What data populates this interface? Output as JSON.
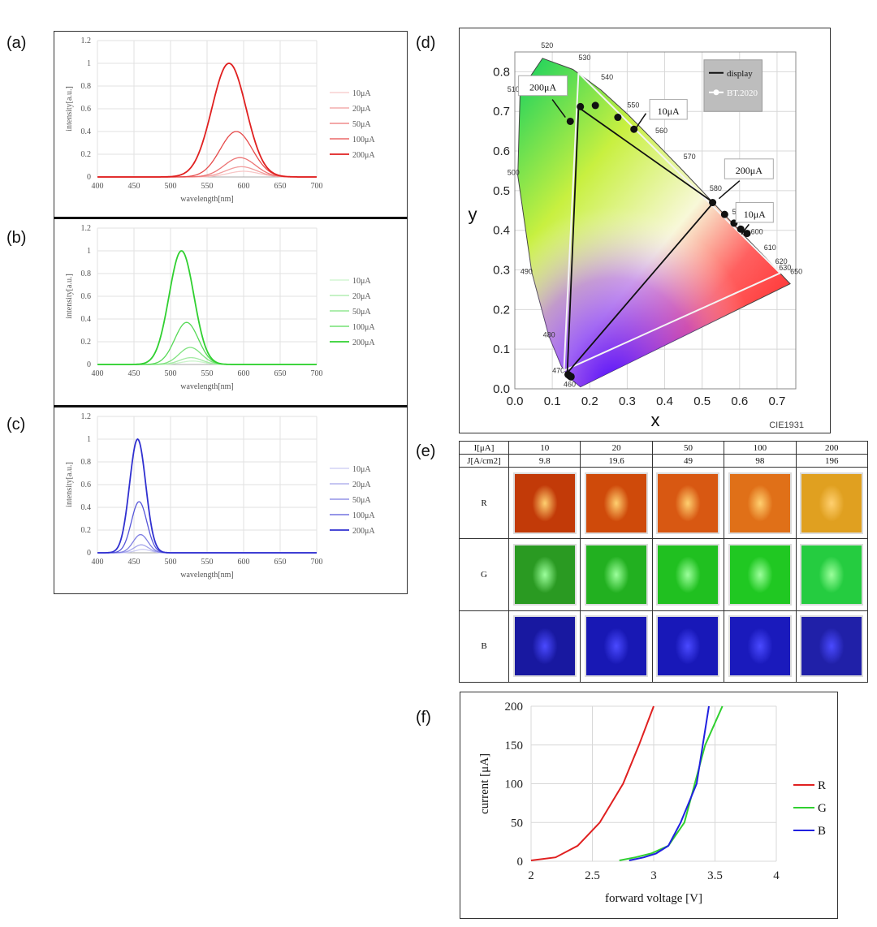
{
  "panels": {
    "a": "(a)",
    "b": "(b)",
    "c": "(c)",
    "d": "(d)",
    "e": "(e)",
    "f": "(f)"
  },
  "spectra": {
    "xlabel": "wavelength[nm]",
    "ylabel": "intensity[a.u.]",
    "xticks": [
      "400",
      "450",
      "500",
      "550",
      "600",
      "650",
      "700"
    ],
    "yticks": [
      "0",
      "0.2",
      "0.4",
      "0.6",
      "0.8",
      "1",
      "1.2"
    ],
    "xlim": [
      400,
      700
    ],
    "ylim": [
      0,
      1.2
    ],
    "legend": [
      "10μA",
      "20μA",
      "50μA",
      "100μA",
      "200μA"
    ]
  },
  "chart_data": [
    {
      "type": "line",
      "id": "a",
      "xlabel": "wavelength[nm]",
      "ylabel": "intensity[a.u.]",
      "xlim": [
        400,
        700
      ],
      "ylim": [
        0,
        1.2
      ],
      "grid": true,
      "legend_position": "right",
      "series_color": "#e02020",
      "series": [
        {
          "name": "10μA",
          "peak_nm": 600,
          "fwhm_nm": 50,
          "peak": 0.05
        },
        {
          "name": "20μA",
          "peak_nm": 597,
          "fwhm_nm": 50,
          "peak": 0.09
        },
        {
          "name": "50μA",
          "peak_nm": 595,
          "fwhm_nm": 50,
          "peak": 0.17
        },
        {
          "name": "100μA",
          "peak_nm": 590,
          "fwhm_nm": 52,
          "peak": 0.4
        },
        {
          "name": "200μA",
          "peak_nm": 580,
          "fwhm_nm": 55,
          "peak": 1.0
        }
      ]
    },
    {
      "type": "line",
      "id": "b",
      "xlabel": "wavelength[nm]",
      "ylabel": "intensity[a.u.]",
      "xlim": [
        400,
        700
      ],
      "ylim": [
        0,
        1.2
      ],
      "grid": true,
      "legend_position": "right",
      "series_color": "#30d030",
      "series": [
        {
          "name": "10μA",
          "peak_nm": 530,
          "fwhm_nm": 36,
          "peak": 0.03
        },
        {
          "name": "20μA",
          "peak_nm": 528,
          "fwhm_nm": 36,
          "peak": 0.06
        },
        {
          "name": "50μA",
          "peak_nm": 527,
          "fwhm_nm": 36,
          "peak": 0.15
        },
        {
          "name": "100μA",
          "peak_nm": 522,
          "fwhm_nm": 38,
          "peak": 0.37
        },
        {
          "name": "200μA",
          "peak_nm": 515,
          "fwhm_nm": 40,
          "peak": 1.0
        }
      ]
    },
    {
      "type": "line",
      "id": "c",
      "xlabel": "wavelength[nm]",
      "ylabel": "intensity[a.u.]",
      "xlim": [
        400,
        700
      ],
      "ylim": [
        0,
        1.2
      ],
      "grid": true,
      "legend_position": "right",
      "series_color": "#3030d0",
      "series": [
        {
          "name": "10μA",
          "peak_nm": 462,
          "fwhm_nm": 24,
          "peak": 0.03
        },
        {
          "name": "20μA",
          "peak_nm": 460,
          "fwhm_nm": 24,
          "peak": 0.07
        },
        {
          "name": "50μA",
          "peak_nm": 459,
          "fwhm_nm": 24,
          "peak": 0.16
        },
        {
          "name": "100μA",
          "peak_nm": 457,
          "fwhm_nm": 25,
          "peak": 0.45
        },
        {
          "name": "200μA",
          "peak_nm": 455,
          "fwhm_nm": 26,
          "peak": 1.0
        }
      ]
    },
    {
      "type": "scatter",
      "id": "d",
      "xlabel": "x",
      "ylabel": "y",
      "xlim": [
        0,
        0.75
      ],
      "ylim": [
        0,
        0.85
      ],
      "grid": true,
      "legend_position": "top-right",
      "xticks": [
        "0.0",
        "0.1",
        "0.2",
        "0.3",
        "0.4",
        "0.5",
        "0.6",
        "0.7"
      ],
      "yticks": [
        "0.0",
        "0.1",
        "0.2",
        "0.3",
        "0.4",
        "0.5",
        "0.6",
        "0.7",
        "0.8"
      ],
      "legend": [
        "display",
        "BT.2020"
      ],
      "caption": "CIE1931",
      "annotations": [
        "200μA",
        "10μA",
        "200μA",
        "10μA"
      ],
      "locus_labels": [
        "460",
        "470",
        "480",
        "490",
        "500",
        "510",
        "520",
        "530",
        "540",
        "550",
        "560",
        "570",
        "580",
        "590",
        "600",
        "610",
        "620",
        "630",
        "650"
      ],
      "display_triangle": [
        [
          0.17,
          0.71
        ],
        [
          0.53,
          0.47
        ],
        [
          0.14,
          0.04
        ]
      ],
      "bt2020_triangle": [
        [
          0.17,
          0.797
        ],
        [
          0.708,
          0.292
        ],
        [
          0.131,
          0.046
        ]
      ],
      "green_points": [
        [
          0.148,
          0.675
        ],
        [
          0.175,
          0.712
        ],
        [
          0.215,
          0.715
        ],
        [
          0.275,
          0.685
        ],
        [
          0.318,
          0.655
        ]
      ],
      "red_points": [
        [
          0.528,
          0.47
        ],
        [
          0.56,
          0.44
        ],
        [
          0.585,
          0.418
        ],
        [
          0.603,
          0.403
        ],
        [
          0.62,
          0.392
        ]
      ],
      "blue_points": [
        [
          0.142,
          0.036
        ],
        [
          0.145,
          0.034
        ],
        [
          0.147,
          0.032
        ],
        [
          0.15,
          0.031
        ],
        [
          0.15,
          0.03
        ]
      ]
    },
    {
      "type": "line",
      "id": "f",
      "xlabel": "forward voltage [V]",
      "ylabel": "current [μA]",
      "xlim": [
        2,
        4
      ],
      "ylim": [
        0,
        200
      ],
      "grid": true,
      "legend_position": "right",
      "xticks": [
        "2",
        "2.5",
        "3",
        "3.5",
        "4"
      ],
      "yticks": [
        "0",
        "50",
        "100",
        "150",
        "200"
      ],
      "series": [
        {
          "name": "R",
          "color": "#e02020",
          "x": [
            2.0,
            2.2,
            2.38,
            2.56,
            2.75,
            2.88,
            3.0
          ],
          "y": [
            1,
            5,
            20,
            50,
            100,
            150,
            200
          ]
        },
        {
          "name": "G",
          "color": "#30d030",
          "x": [
            2.72,
            2.85,
            2.98,
            3.12,
            3.25,
            3.42,
            3.56
          ],
          "y": [
            1,
            5,
            10,
            20,
            50,
            150,
            200
          ]
        },
        {
          "name": "B",
          "color": "#2020e0",
          "x": [
            2.8,
            2.92,
            3.02,
            3.12,
            3.22,
            3.35,
            3.45
          ],
          "y": [
            1,
            5,
            10,
            20,
            50,
            100,
            200
          ]
        }
      ]
    }
  ],
  "table": {
    "row_I_label": "I[μA]",
    "row_J_label": "J[A/cm2]",
    "I": [
      "10",
      "20",
      "50",
      "100",
      "200"
    ],
    "J": [
      "9.8",
      "19.6",
      "49",
      "98",
      "196"
    ],
    "rows": [
      {
        "label": "R",
        "colors": [
          "#c23a08",
          "#cf4a0a",
          "#d85812",
          "#e07018",
          "#e0a020"
        ]
      },
      {
        "label": "G",
        "colors": [
          "#2a9a22",
          "#22b020",
          "#20c020",
          "#20c822",
          "#25cc40"
        ]
      },
      {
        "label": "B",
        "colors": [
          "#1818a0",
          "#1818b4",
          "#1818b8",
          "#1a1abc",
          "#2020a8"
        ]
      }
    ]
  }
}
